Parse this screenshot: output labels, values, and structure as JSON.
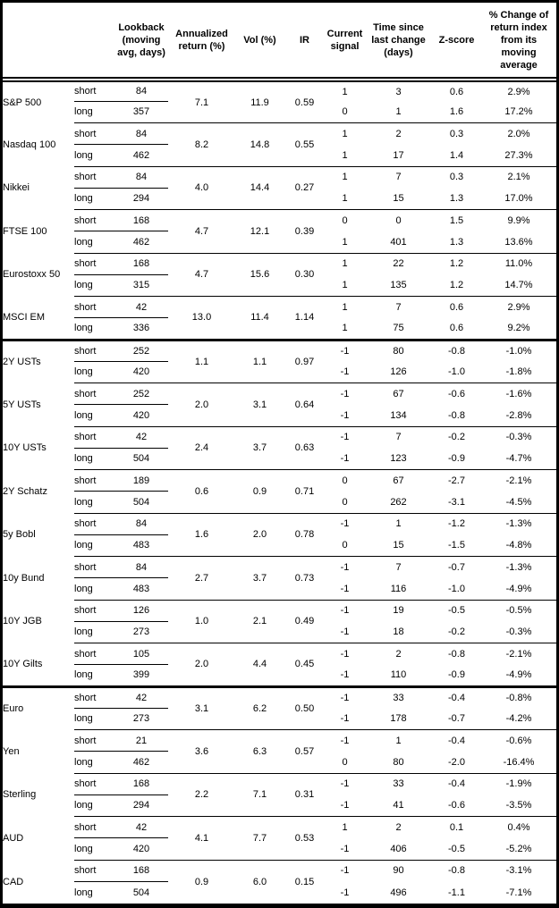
{
  "colors": {
    "border": "#000000",
    "text": "#000000",
    "background": "#ffffff"
  },
  "table": {
    "headers": {
      "corner": "",
      "lookback": "Lookback\n(moving\navg, days)",
      "annualized_return": "Annualized\nreturn (%)",
      "vol": "Vol (%)",
      "ir": "IR",
      "current_signal": "Current\nsignal",
      "time_since": "Time since\nlast change\n(days)",
      "zscore": "Z-score",
      "pct_change": "% Change of\nreturn index\nfrom its\nmoving\naverage"
    },
    "row_labels": {
      "short": "short",
      "long": "long"
    },
    "sections": [
      {
        "groups": [
          {
            "instrument": "S&P 500",
            "annualized_return": "7.1",
            "vol": "11.9",
            "ir": "0.59",
            "short": {
              "lookback": "84",
              "signal": "1",
              "days_since_change": "3",
              "zscore": "0.6",
              "pct_change": "2.9%"
            },
            "long": {
              "lookback": "357",
              "signal": "0",
              "days_since_change": "1",
              "zscore": "1.6",
              "pct_change": "17.2%"
            }
          },
          {
            "instrument": "Nasdaq 100",
            "annualized_return": "8.2",
            "vol": "14.8",
            "ir": "0.55",
            "short": {
              "lookback": "84",
              "signal": "1",
              "days_since_change": "2",
              "zscore": "0.3",
              "pct_change": "2.0%"
            },
            "long": {
              "lookback": "462",
              "signal": "1",
              "days_since_change": "17",
              "zscore": "1.4",
              "pct_change": "27.3%"
            }
          },
          {
            "instrument": "Nikkei",
            "annualized_return": "4.0",
            "vol": "14.4",
            "ir": "0.27",
            "short": {
              "lookback": "84",
              "signal": "1",
              "days_since_change": "7",
              "zscore": "0.3",
              "pct_change": "2.1%"
            },
            "long": {
              "lookback": "294",
              "signal": "1",
              "days_since_change": "15",
              "zscore": "1.3",
              "pct_change": "17.0%"
            }
          },
          {
            "instrument": "FTSE 100",
            "annualized_return": "4.7",
            "vol": "12.1",
            "ir": "0.39",
            "short": {
              "lookback": "168",
              "signal": "0",
              "days_since_change": "0",
              "zscore": "1.5",
              "pct_change": "9.9%"
            },
            "long": {
              "lookback": "462",
              "signal": "1",
              "days_since_change": "401",
              "zscore": "1.3",
              "pct_change": "13.6%"
            }
          },
          {
            "instrument": "Eurostoxx 50",
            "annualized_return": "4.7",
            "vol": "15.6",
            "ir": "0.30",
            "short": {
              "lookback": "168",
              "signal": "1",
              "days_since_change": "22",
              "zscore": "1.2",
              "pct_change": "11.0%"
            },
            "long": {
              "lookback": "315",
              "signal": "1",
              "days_since_change": "135",
              "zscore": "1.2",
              "pct_change": "14.7%"
            }
          },
          {
            "instrument": "MSCI EM",
            "annualized_return": "13.0",
            "vol": "11.4",
            "ir": "1.14",
            "short": {
              "lookback": "42",
              "signal": "1",
              "days_since_change": "7",
              "zscore": "0.6",
              "pct_change": "2.9%"
            },
            "long": {
              "lookback": "336",
              "signal": "1",
              "days_since_change": "75",
              "zscore": "0.6",
              "pct_change": "9.2%"
            }
          }
        ]
      },
      {
        "groups": [
          {
            "instrument": "2Y USTs",
            "annualized_return": "1.1",
            "vol": "1.1",
            "ir": "0.97",
            "short": {
              "lookback": "252",
              "signal": "-1",
              "days_since_change": "80",
              "zscore": "-0.8",
              "pct_change": "-1.0%"
            },
            "long": {
              "lookback": "420",
              "signal": "-1",
              "days_since_change": "126",
              "zscore": "-1.0",
              "pct_change": "-1.8%"
            }
          },
          {
            "instrument": "5Y USTs",
            "annualized_return": "2.0",
            "vol": "3.1",
            "ir": "0.64",
            "short": {
              "lookback": "252",
              "signal": "-1",
              "days_since_change": "67",
              "zscore": "-0.6",
              "pct_change": "-1.6%"
            },
            "long": {
              "lookback": "420",
              "signal": "-1",
              "days_since_change": "134",
              "zscore": "-0.8",
              "pct_change": "-2.8%"
            }
          },
          {
            "instrument": "10Y USTs",
            "annualized_return": "2.4",
            "vol": "3.7",
            "ir": "0.63",
            "short": {
              "lookback": "42",
              "signal": "-1",
              "days_since_change": "7",
              "zscore": "-0.2",
              "pct_change": "-0.3%"
            },
            "long": {
              "lookback": "504",
              "signal": "-1",
              "days_since_change": "123",
              "zscore": "-0.9",
              "pct_change": "-4.7%"
            }
          },
          {
            "instrument": "2Y Schatz",
            "annualized_return": "0.6",
            "vol": "0.9",
            "ir": "0.71",
            "short": {
              "lookback": "189",
              "signal": "0",
              "days_since_change": "67",
              "zscore": "-2.7",
              "pct_change": "-2.1%"
            },
            "long": {
              "lookback": "504",
              "signal": "0",
              "days_since_change": "262",
              "zscore": "-3.1",
              "pct_change": "-4.5%"
            }
          },
          {
            "instrument": "5y Bobl",
            "annualized_return": "1.6",
            "vol": "2.0",
            "ir": "0.78",
            "short": {
              "lookback": "84",
              "signal": "-1",
              "days_since_change": "1",
              "zscore": "-1.2",
              "pct_change": "-1.3%"
            },
            "long": {
              "lookback": "483",
              "signal": "0",
              "days_since_change": "15",
              "zscore": "-1.5",
              "pct_change": "-4.8%"
            }
          },
          {
            "instrument": "10y Bund",
            "annualized_return": "2.7",
            "vol": "3.7",
            "ir": "0.73",
            "short": {
              "lookback": "84",
              "signal": "-1",
              "days_since_change": "7",
              "zscore": "-0.7",
              "pct_change": "-1.3%"
            },
            "long": {
              "lookback": "483",
              "signal": "-1",
              "days_since_change": "116",
              "zscore": "-1.0",
              "pct_change": "-4.9%"
            }
          },
          {
            "instrument": "10Y JGB",
            "annualized_return": "1.0",
            "vol": "2.1",
            "ir": "0.49",
            "short": {
              "lookback": "126",
              "signal": "-1",
              "days_since_change": "19",
              "zscore": "-0.5",
              "pct_change": "-0.5%"
            },
            "long": {
              "lookback": "273",
              "signal": "-1",
              "days_since_change": "18",
              "zscore": "-0.2",
              "pct_change": "-0.3%"
            }
          },
          {
            "instrument": "10Y Gilts",
            "annualized_return": "2.0",
            "vol": "4.4",
            "ir": "0.45",
            "short": {
              "lookback": "105",
              "signal": "-1",
              "days_since_change": "2",
              "zscore": "-0.8",
              "pct_change": "-2.1%"
            },
            "long": {
              "lookback": "399",
              "signal": "-1",
              "days_since_change": "110",
              "zscore": "-0.9",
              "pct_change": "-4.9%"
            }
          }
        ]
      },
      {
        "groups": [
          {
            "instrument": "Euro",
            "annualized_return": "3.1",
            "vol": "6.2",
            "ir": "0.50",
            "short": {
              "lookback": "42",
              "signal": "-1",
              "days_since_change": "33",
              "zscore": "-0.4",
              "pct_change": "-0.8%"
            },
            "long": {
              "lookback": "273",
              "signal": "-1",
              "days_since_change": "178",
              "zscore": "-0.7",
              "pct_change": "-4.2%"
            }
          },
          {
            "instrument": "Yen",
            "annualized_return": "3.6",
            "vol": "6.3",
            "ir": "0.57",
            "short": {
              "lookback": "21",
              "signal": "-1",
              "days_since_change": "1",
              "zscore": "-0.4",
              "pct_change": "-0.6%"
            },
            "long": {
              "lookback": "462",
              "signal": "0",
              "days_since_change": "80",
              "zscore": "-2.0",
              "pct_change": "-16.4%"
            }
          },
          {
            "instrument": "Sterling",
            "annualized_return": "2.2",
            "vol": "7.1",
            "ir": "0.31",
            "short": {
              "lookback": "168",
              "signal": "-1",
              "days_since_change": "33",
              "zscore": "-0.4",
              "pct_change": "-1.9%"
            },
            "long": {
              "lookback": "294",
              "signal": "-1",
              "days_since_change": "41",
              "zscore": "-0.6",
              "pct_change": "-3.5%"
            }
          },
          {
            "instrument": "AUD",
            "annualized_return": "4.1",
            "vol": "7.7",
            "ir": "0.53",
            "short": {
              "lookback": "42",
              "signal": "1",
              "days_since_change": "2",
              "zscore": "0.1",
              "pct_change": "0.4%"
            },
            "long": {
              "lookback": "420",
              "signal": "-1",
              "days_since_change": "406",
              "zscore": "-0.5",
              "pct_change": "-5.2%"
            }
          },
          {
            "instrument": "CAD",
            "annualized_return": "0.9",
            "vol": "6.0",
            "ir": "0.15",
            "short": {
              "lookback": "168",
              "signal": "-1",
              "days_since_change": "90",
              "zscore": "-0.8",
              "pct_change": "-3.1%"
            },
            "long": {
              "lookback": "504",
              "signal": "-1",
              "days_since_change": "496",
              "zscore": "-1.1",
              "pct_change": "-7.1%"
            }
          }
        ]
      }
    ]
  }
}
